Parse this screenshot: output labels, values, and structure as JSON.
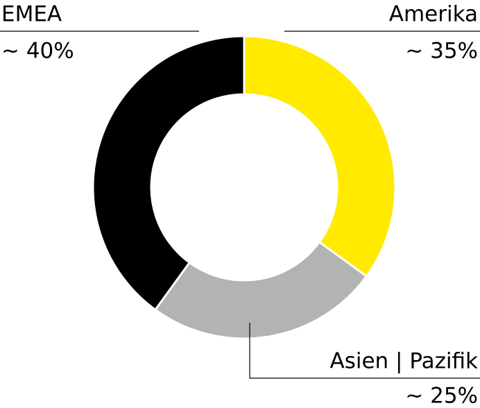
{
  "chart_data": {
    "type": "donut",
    "categories": [
      "Amerika",
      "Asien | Pazifik",
      "EMEA"
    ],
    "values": [
      35,
      25,
      40
    ],
    "value_labels": [
      "~ 35%",
      "~ 25%",
      "~ 40%"
    ],
    "colors": [
      "#ffea00",
      "#b3b3b3",
      "#000000"
    ]
  }
}
